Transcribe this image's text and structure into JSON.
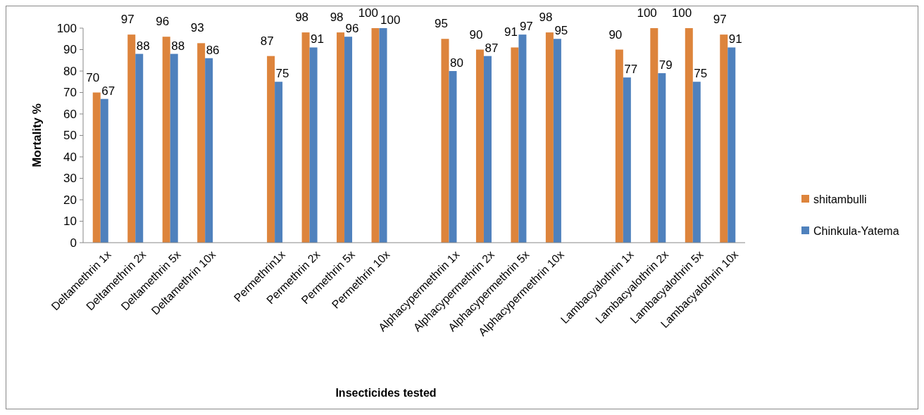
{
  "chart_data": {
    "type": "bar",
    "xlabel": "Insecticides tested",
    "ylabel": "Mortality %",
    "categories": [
      "Deltamethrin 1x",
      "Deltamethrin 2x",
      "Deltamethrin 5x",
      "Deltamethrin 10x",
      null,
      "Permethrin1x",
      "Permethrin 2x",
      "Permethrin 5x",
      "Permethrin 10x",
      null,
      "Alphacypermethrin 1x",
      "Alphacypermethrin 2x",
      "Alphacypermethrin 5x",
      "Alphacypermethrin 10x",
      null,
      "Lambacyalothrin 1x",
      "Lambacyalothrin 2x",
      "Lambacyalothrin 5x",
      "Lambacyalothrin 10x"
    ],
    "series": [
      {
        "name": "shitambulli",
        "color": "#dd843c",
        "values": [
          70,
          97,
          96,
          93,
          null,
          87,
          98,
          98,
          100,
          null,
          95,
          90,
          91,
          98,
          null,
          90,
          100,
          100,
          97
        ]
      },
      {
        "name": "Chinkula-Yatema",
        "color": "#4f81bd",
        "values": [
          67,
          88,
          88,
          86,
          null,
          75,
          91,
          96,
          100,
          null,
          80,
          87,
          97,
          95,
          null,
          77,
          79,
          75,
          91
        ]
      }
    ],
    "ylim": [
      0,
      100
    ],
    "yticks": [
      0,
      10,
      20,
      30,
      40,
      50,
      60,
      70,
      80,
      90,
      100
    ],
    "data_labels": true,
    "legend": "right",
    "grid": false
  }
}
